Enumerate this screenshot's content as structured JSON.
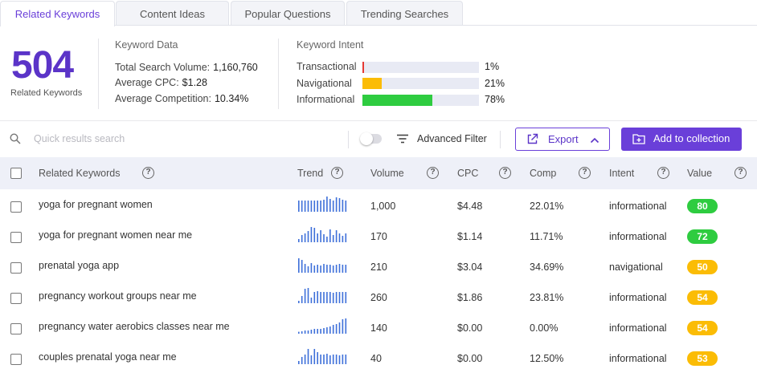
{
  "tabs": [
    {
      "label": "Related Keywords",
      "active": true
    },
    {
      "label": "Content Ideas",
      "active": false
    },
    {
      "label": "Popular Questions",
      "active": false
    },
    {
      "label": "Trending Searches",
      "active": false
    }
  ],
  "summary": {
    "count": "504",
    "count_label": "Related Keywords",
    "keyword_data_title": "Keyword Data",
    "total_search_volume_label": "Total Search Volume:",
    "total_search_volume": "1,160,760",
    "average_cpc_label": "Average CPC:",
    "average_cpc": "$1.28",
    "average_competition_label": "Average Competition:",
    "average_competition": "10.34%",
    "intent_title": "Keyword Intent",
    "intents": [
      {
        "label": "Transactional",
        "pct": "1%",
        "value": 1,
        "color": "#e53935"
      },
      {
        "label": "Navigational",
        "pct": "21%",
        "value": 21,
        "color": "#fbbc05"
      },
      {
        "label": "Informational",
        "pct": "78%",
        "value": 78,
        "color": "#2ecc40"
      }
    ]
  },
  "toolbar": {
    "search_placeholder": "Quick results search",
    "advanced_filter_label": "Advanced Filter",
    "advanced_filter_on": false,
    "export_label": "Export",
    "add_collection_label": "Add to collection"
  },
  "table": {
    "headers": {
      "keyword": "Related Keywords",
      "trend": "Trend",
      "volume": "Volume",
      "cpc": "CPC",
      "comp": "Comp",
      "intent": "Intent",
      "value": "Value"
    },
    "rows": [
      {
        "keyword": "yoga for pregnant women",
        "trend": [
          0.7,
          0.7,
          0.7,
          0.7,
          0.7,
          0.7,
          0.7,
          0.7,
          0.75,
          0.95,
          0.8,
          0.7,
          0.9,
          0.85,
          0.75,
          0.7
        ],
        "volume": "1,000",
        "cpc": "$4.48",
        "comp": "22.01%",
        "intent": "informational",
        "value": "80",
        "value_color": "#2ecc40"
      },
      {
        "keyword": "yoga for pregnant women near me",
        "trend": [
          0.2,
          0.45,
          0.55,
          0.7,
          0.95,
          0.9,
          0.55,
          0.75,
          0.5,
          0.35,
          0.8,
          0.45,
          0.75,
          0.55,
          0.4,
          0.55
        ],
        "volume": "170",
        "cpc": "$1.14",
        "comp": "11.71%",
        "intent": "informational",
        "value": "72",
        "value_color": "#2ecc40"
      },
      {
        "keyword": "prenatal yoga app",
        "trend": [
          0.9,
          0.8,
          0.55,
          0.4,
          0.6,
          0.45,
          0.5,
          0.45,
          0.55,
          0.5,
          0.5,
          0.45,
          0.5,
          0.55,
          0.5,
          0.5
        ],
        "volume": "210",
        "cpc": "$3.04",
        "comp": "34.69%",
        "intent": "navigational",
        "value": "50",
        "value_color": "#fbbc05"
      },
      {
        "keyword": "pregnancy workout groups near me",
        "trend": [
          0.15,
          0.45,
          0.9,
          0.95,
          0.35,
          0.7,
          0.75,
          0.7,
          0.7,
          0.7,
          0.7,
          0.65,
          0.7,
          0.7,
          0.7,
          0.7
        ],
        "volume": "260",
        "cpc": "$1.86",
        "comp": "23.81%",
        "intent": "informational",
        "value": "54",
        "value_color": "#fbbc05"
      },
      {
        "keyword": "pregnancy water aerobics classes near me",
        "trend": [
          0.12,
          0.15,
          0.2,
          0.2,
          0.25,
          0.3,
          0.3,
          0.3,
          0.35,
          0.4,
          0.45,
          0.55,
          0.6,
          0.7,
          0.9,
          0.95
        ],
        "volume": "140",
        "cpc": "$0.00",
        "comp": "0.00%",
        "intent": "informational",
        "value": "54",
        "value_color": "#fbbc05"
      },
      {
        "keyword": "couples prenatal yoga near me",
        "trend": [
          0.2,
          0.45,
          0.6,
          0.95,
          0.55,
          0.95,
          0.75,
          0.6,
          0.6,
          0.65,
          0.55,
          0.6,
          0.6,
          0.55,
          0.6,
          0.6
        ],
        "volume": "40",
        "cpc": "$0.00",
        "comp": "12.50%",
        "intent": "informational",
        "value": "53",
        "value_color": "#fbbc05"
      }
    ]
  },
  "colors": {
    "accent": "#6a3fd9",
    "trend_bar": "#3d6fd9"
  },
  "icons": {
    "search": "search-icon",
    "filter": "filter-lines-icon",
    "export": "export-icon",
    "chevron": "chevron-up-icon",
    "add": "folder-plus-icon",
    "help": "help-circle-icon"
  }
}
